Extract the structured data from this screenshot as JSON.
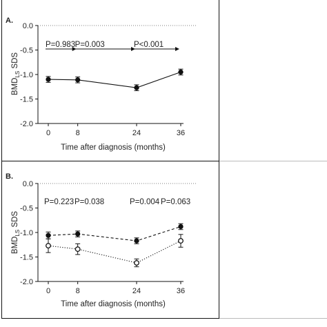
{
  "chart_data": [
    {
      "type": "line",
      "panel_label": "A.",
      "xlabel": "Time after diagnosis (months)",
      "ylabel_main": "BMD",
      "ylabel_sub": "LS",
      "ylabel_tail": " SDS",
      "x": [
        0,
        8,
        24,
        36
      ],
      "x_tick_labels": [
        "0",
        "8",
        "24",
        "36"
      ],
      "ylim": [
        -2.0,
        0.0
      ],
      "y_ticks": [
        0.0,
        -0.5,
        -1.0,
        -1.5,
        -2.0
      ],
      "y_tick_labels": [
        "0.0",
        "-0.5",
        "-1.0",
        "-1.5",
        "-2.0"
      ],
      "reference_line": {
        "y": 0.0,
        "style": "dotted"
      },
      "series": [
        {
          "style": "solid",
          "marker": "filled-circle",
          "values": [
            -1.1,
            -1.11,
            -1.27,
            -0.95
          ],
          "errors": [
            0.06,
            0.06,
            0.06,
            0.06
          ]
        }
      ],
      "annotations": [
        {
          "text": "P=0.983",
          "arrow_from": 0,
          "arrow_to": 8
        },
        {
          "text": "P=0.003",
          "arrow_from": 8,
          "arrow_to": 24
        },
        {
          "text": "P<0.001",
          "arrow_from": 24,
          "arrow_to": 36
        }
      ]
    },
    {
      "type": "line",
      "panel_label": "B.",
      "xlabel": "Time after diagnosis (months)",
      "ylabel_main": "BMD",
      "ylabel_sub": "LS",
      "ylabel_tail": " SDS",
      "x": [
        0,
        8,
        24,
        36
      ],
      "x_tick_labels": [
        "0",
        "8",
        "24",
        "36"
      ],
      "ylim": [
        -2.0,
        0.0
      ],
      "y_ticks": [
        0.0,
        -0.5,
        -1.0,
        -1.5,
        -2.0
      ],
      "y_tick_labels": [
        "0.0",
        "-0.5",
        "-1.0",
        "-1.5",
        "-2.0"
      ],
      "reference_line": {
        "y": 0.0,
        "style": "dotted"
      },
      "series": [
        {
          "style": "dashed",
          "marker": "filled-circle",
          "values": [
            -1.06,
            -1.03,
            -1.17,
            -0.88
          ],
          "errors": [
            0.07,
            0.06,
            0.06,
            0.06
          ]
        },
        {
          "style": "dotted",
          "marker": "open-circle",
          "values": [
            -1.27,
            -1.34,
            -1.62,
            -1.17
          ],
          "errors": [
            0.14,
            0.11,
            0.08,
            0.13
          ]
        }
      ],
      "annotations": [
        {
          "text": "P=0.223",
          "position": "left"
        },
        {
          "text": "P=0.038",
          "position": "left"
        },
        {
          "text": "P=0.004",
          "position": "right"
        },
        {
          "text": "P=0.063",
          "position": "right"
        }
      ]
    }
  ]
}
